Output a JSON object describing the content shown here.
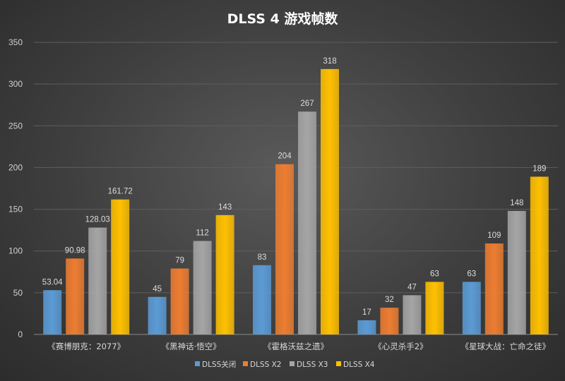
{
  "chart_data": {
    "type": "bar",
    "title": "DLSS 4 游戏帧数",
    "categories": [
      "《赛博朋克：2077》",
      "《黑神话·悟空》",
      "《霍格沃兹之遗》",
      "《心灵杀手2》",
      "《星球大战：亡命之徒》"
    ],
    "series": [
      {
        "name": "DLSS关闭",
        "color": "#5b9bd5",
        "values": [
          53.04,
          45,
          83,
          17,
          63
        ],
        "labels": [
          "53.04",
          "45",
          "83",
          "17",
          "63"
        ]
      },
      {
        "name": "DLSS X2",
        "color": "#ed7d31",
        "values": [
          90.98,
          79,
          204,
          32,
          109
        ],
        "labels": [
          "90.98",
          "79",
          "204",
          "32",
          "109"
        ]
      },
      {
        "name": "DLSS X3",
        "color": "#a5a5a5",
        "values": [
          128.03,
          112,
          267,
          47,
          148
        ],
        "labels": [
          "128.03",
          "112",
          "267",
          "47",
          "148"
        ]
      },
      {
        "name": "DLSS X4",
        "color": "#ffc000",
        "values": [
          161.72,
          143,
          318,
          63,
          189
        ],
        "labels": [
          "161.72",
          "143",
          "318",
          "63",
          "189"
        ]
      }
    ],
    "ylim": [
      0,
      350
    ],
    "yticks": [
      0,
      50,
      100,
      150,
      200,
      250,
      300,
      350
    ],
    "grid": true,
    "legend_position": "bottom"
  }
}
